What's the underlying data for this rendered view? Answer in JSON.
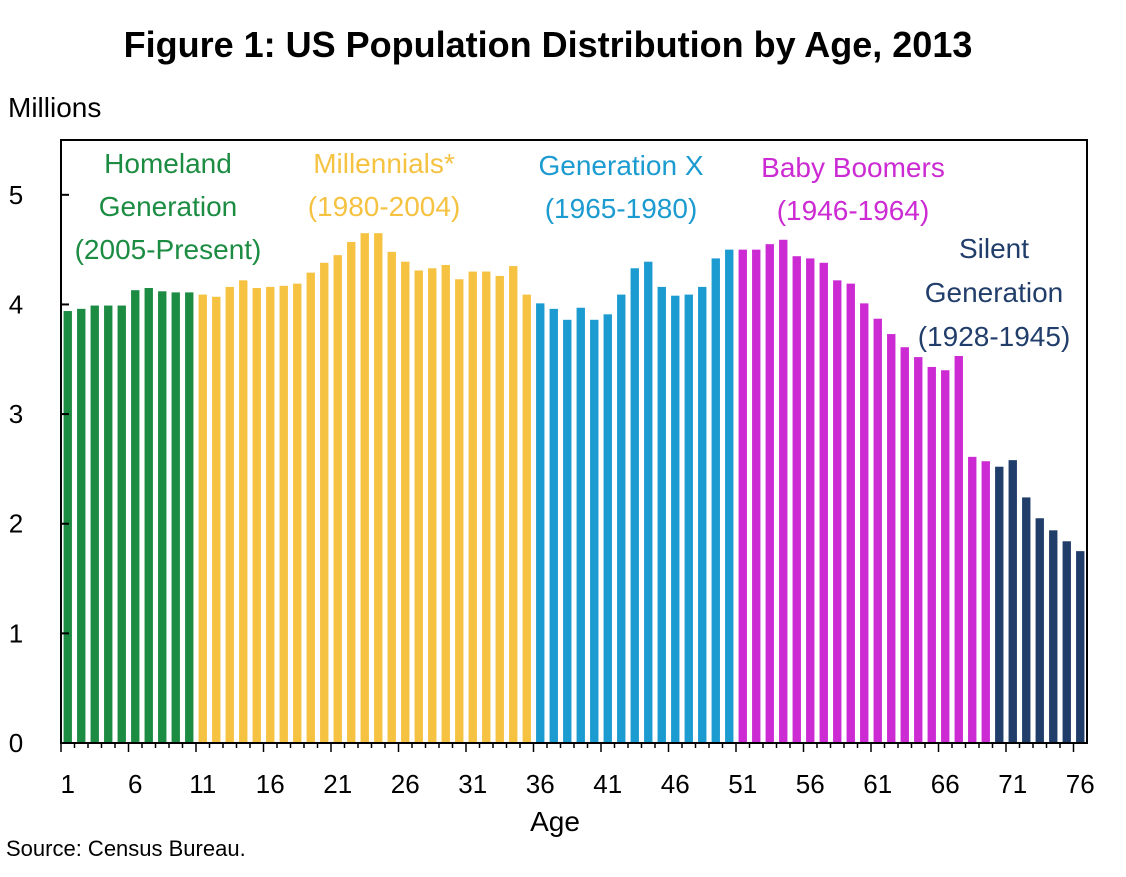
{
  "chart_data": {
    "type": "bar",
    "title": "Figure 1: US Population Distribution by Age, 2013",
    "ylabel": "Millions",
    "xlabel": "Age",
    "source": "Source: Census Bureau.",
    "ylim": [
      0,
      5.5
    ],
    "yticks": [
      "0",
      "1",
      "2",
      "3",
      "4",
      "5"
    ],
    "xticks": [
      "1",
      "6",
      "11",
      "16",
      "21",
      "26",
      "31",
      "36",
      "41",
      "46",
      "51",
      "56",
      "61",
      "66",
      "71",
      "76"
    ],
    "grid": false,
    "x": [
      1,
      2,
      3,
      4,
      5,
      6,
      7,
      8,
      9,
      10,
      11,
      12,
      13,
      14,
      15,
      16,
      17,
      18,
      19,
      20,
      21,
      22,
      23,
      24,
      25,
      26,
      27,
      28,
      29,
      30,
      31,
      32,
      33,
      34,
      35,
      36,
      37,
      38,
      39,
      40,
      41,
      42,
      43,
      44,
      45,
      46,
      47,
      48,
      49,
      50,
      51,
      52,
      53,
      54,
      55,
      56,
      57,
      58,
      59,
      60,
      61,
      62,
      63,
      64,
      65,
      66,
      67,
      68,
      69,
      70,
      71,
      72,
      73,
      74,
      75,
      76
    ],
    "values": [
      3.94,
      3.96,
      3.99,
      3.99,
      3.99,
      4.13,
      4.15,
      4.12,
      4.11,
      4.11,
      4.09,
      4.07,
      4.16,
      4.22,
      4.15,
      4.16,
      4.17,
      4.19,
      4.29,
      4.38,
      4.45,
      4.57,
      4.65,
      4.65,
      4.48,
      4.39,
      4.31,
      4.33,
      4.36,
      4.23,
      4.3,
      4.3,
      4.26,
      4.35,
      4.09,
      4.01,
      3.96,
      3.86,
      3.97,
      3.86,
      3.91,
      4.09,
      4.33,
      4.39,
      4.16,
      4.08,
      4.09,
      4.16,
      4.42,
      4.5,
      4.5,
      4.5,
      4.55,
      4.59,
      4.44,
      4.42,
      4.38,
      4.22,
      4.19,
      4.01,
      3.87,
      3.73,
      3.61,
      3.52,
      3.43,
      3.4,
      3.53,
      2.61,
      2.57,
      2.52,
      2.58,
      2.24,
      2.05,
      1.94,
      1.84,
      1.75
    ],
    "series": [
      {
        "name": "Homeland Generation",
        "years": "(2005-Present)",
        "color": "#1c8c43",
        "start": 1,
        "end": 10
      },
      {
        "name": "Millennials*",
        "years": "(1980-2004)",
        "color": "#f5c242",
        "start": 11,
        "end": 35
      },
      {
        "name": "Generation X",
        "years": "(1965-1980)",
        "color": "#1b9bd0",
        "start": 36,
        "end": 50
      },
      {
        "name": "Baby Boomers",
        "years": "(1946-1964)",
        "color": "#cc2ad3",
        "start": 51,
        "end": 69
      },
      {
        "name": "Silent Generation",
        "years": "(1928-1945)",
        "color": "#213e6b",
        "start": 70,
        "end": 76
      }
    ],
    "annotations": [
      {
        "lines": [
          "Homeland",
          "Generation",
          "(2005-Present)"
        ],
        "color": "#1c8c43"
      },
      {
        "lines": [
          "Millennials*",
          "(1980-2004)"
        ],
        "color": "#f5c242"
      },
      {
        "lines": [
          "Generation X",
          "(1965-1980)"
        ],
        "color": "#1b9bd0"
      },
      {
        "lines": [
          "Baby Boomers",
          "(1946-1964)"
        ],
        "color": "#cc2ad3"
      },
      {
        "lines": [
          "Silent",
          "Generation",
          "(1928-1945)"
        ],
        "color": "#213e6b"
      }
    ]
  }
}
